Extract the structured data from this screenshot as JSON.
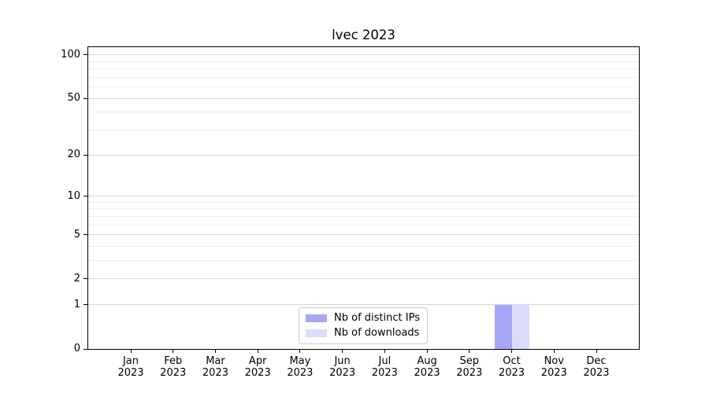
{
  "chart_data": {
    "type": "bar",
    "title": "lvec 2023",
    "categories": [
      "Jan",
      "Feb",
      "Mar",
      "Apr",
      "May",
      "Jun",
      "Jul",
      "Aug",
      "Sep",
      "Oct",
      "Nov",
      "Dec"
    ],
    "category_year": "2023",
    "series": [
      {
        "name": "Nb of distinct IPs",
        "color": "#a6a6f7",
        "values": [
          0,
          0,
          0,
          0,
          0,
          0,
          0,
          0,
          0,
          1,
          0,
          0
        ]
      },
      {
        "name": "Nb of downloads",
        "color": "#dcdcfa",
        "values": [
          0,
          0,
          0,
          0,
          0,
          0,
          0,
          0,
          0,
          1,
          0,
          0
        ]
      }
    ],
    "y_scale": "log1p",
    "ylim": [
      0,
      113
    ],
    "y_major_ticks": [
      0,
      1,
      2,
      5,
      10,
      20,
      50,
      100
    ],
    "y_minor_ticks": [
      3,
      4,
      6,
      7,
      8,
      9,
      30,
      40,
      60,
      70,
      80,
      90
    ],
    "grid": "both",
    "legend_position": "lower center",
    "colors": {
      "major_grid": "#d6d6d6",
      "minor_grid": "#f0f0f0",
      "spine": "#000000",
      "text": "#000000",
      "legend_border": "#cccccc"
    }
  }
}
